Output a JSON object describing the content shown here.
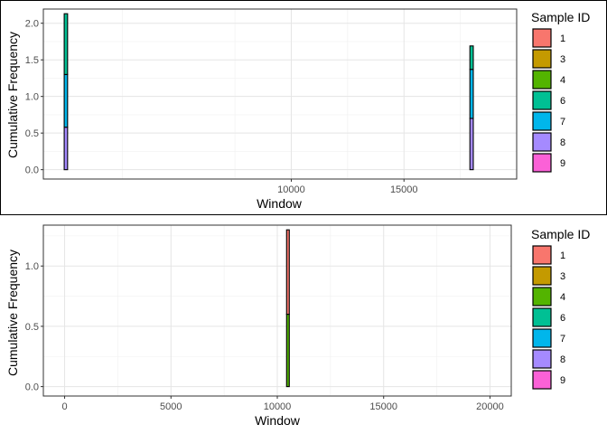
{
  "colors": {
    "1": "#F8766D",
    "3": "#C49A00",
    "4": "#53B400",
    "6": "#00C094",
    "7": "#00B6EB",
    "8": "#A58AFF",
    "9": "#FB61D7"
  },
  "chart_data": [
    {
      "type": "bar",
      "stacked": true,
      "xlabel": "Window",
      "ylabel": "Cumulative Frequency",
      "xlim": [
        0,
        20000
      ],
      "ylim": [
        0,
        2.13
      ],
      "x_ticks": [
        10000,
        15000
      ],
      "y_ticks": [
        0.0,
        0.5,
        1.0,
        1.5,
        2.0
      ],
      "y_tick_labels": [
        "0.0",
        "0.5",
        "1.0",
        "1.5",
        "2.0"
      ],
      "grid": true,
      "legend": {
        "title": "Sample ID",
        "position": "right",
        "entries": [
          "1",
          "3",
          "4",
          "6",
          "7",
          "8",
          "9"
        ]
      },
      "bin_width": 150,
      "bars": [
        {
          "x": 0,
          "segments": [
            {
              "series": "8",
              "value": 0.58
            },
            {
              "series": "7",
              "value": 0.72
            },
            {
              "series": "6",
              "value": 0.83
            }
          ]
        },
        {
          "x": 18000,
          "segments": [
            {
              "series": "8",
              "value": 0.7
            },
            {
              "series": "7",
              "value": 0.67
            },
            {
              "series": "6",
              "value": 0.32
            }
          ]
        }
      ]
    },
    {
      "type": "bar",
      "stacked": true,
      "xlabel": "Window",
      "ylabel": "Cumulative Frequency",
      "xlim": [
        0,
        20000
      ],
      "ylim": [
        0,
        1.3
      ],
      "x_ticks": [
        0,
        5000,
        10000,
        15000,
        20000
      ],
      "y_ticks": [
        0.0,
        0.5,
        1.0
      ],
      "y_tick_labels": [
        "0.0",
        "0.5",
        "1.0"
      ],
      "grid": true,
      "legend": {
        "title": "Sample ID",
        "position": "right",
        "entries": [
          "1",
          "3",
          "4",
          "6",
          "7",
          "8",
          "9"
        ]
      },
      "bin_width": 100,
      "bars": [
        {
          "x": 10500,
          "segments": [
            {
              "series": "4",
              "value": 0.6
            },
            {
              "series": "1",
              "value": 0.7
            }
          ]
        }
      ]
    }
  ]
}
